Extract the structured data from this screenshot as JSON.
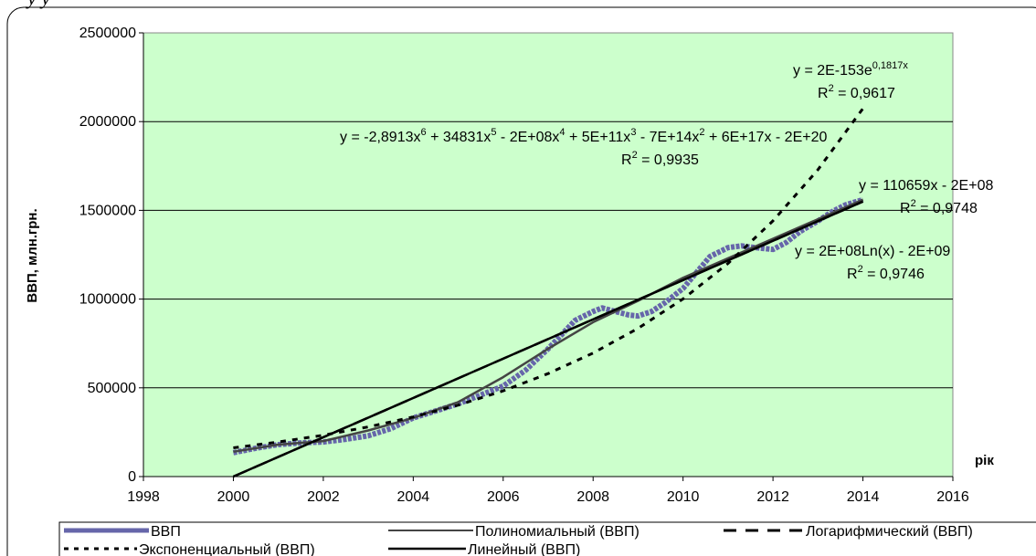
{
  "chart_data": {
    "type": "line",
    "title": "",
    "xlabel": "рік",
    "ylabel": "ВВП, млн.грн.",
    "xlim": [
      1998,
      2016
    ],
    "ylim": [
      0,
      2500000
    ],
    "x_ticks": [
      "1998",
      "2000",
      "2002",
      "2004",
      "2006",
      "2008",
      "2010",
      "2012",
      "2014",
      "2016"
    ],
    "y_ticks": [
      "0",
      "500000",
      "1000000",
      "1500000",
      "2000000",
      "2500000"
    ],
    "grid": "horizontal",
    "colors": {
      "plot_bg": "#ccffcc",
      "actual": "#6666aa",
      "poly": "#444444",
      "trend": "#000000"
    },
    "series": [
      {
        "name": "ВВП",
        "style": "thick-blue",
        "x": [
          2000,
          2000.5,
          2001,
          2001.5,
          2002,
          2002.5,
          2003,
          2003.5,
          2004,
          2004.5,
          2005,
          2005.5,
          2006,
          2006.5,
          2007,
          2007.3,
          2007.6,
          2008,
          2008.2,
          2008.5,
          2008.8,
          2009,
          2009.3,
          2009.6,
          2010,
          2010.3,
          2010.6,
          2011,
          2011.3,
          2011.6,
          2012,
          2012.3,
          2012.6,
          2013,
          2013.3,
          2013.6,
          2014
        ],
        "values": [
          135000,
          160000,
          180000,
          190000,
          195000,
          210000,
          230000,
          270000,
          330000,
          370000,
          410000,
          460000,
          510000,
          600000,
          720000,
          800000,
          880000,
          930000,
          950000,
          930000,
          910000,
          905000,
          930000,
          980000,
          1060000,
          1150000,
          1240000,
          1290000,
          1300000,
          1290000,
          1280000,
          1320000,
          1380000,
          1440000,
          1490000,
          1530000,
          1560000
        ]
      },
      {
        "name": "Полиномиальный (ВВП)",
        "style": "solid-dark",
        "x": [
          2000,
          2001,
          2002,
          2003,
          2004,
          2005,
          2006,
          2007,
          2008,
          2009,
          2010,
          2011,
          2012,
          2013,
          2014
        ],
        "values": [
          140000,
          180000,
          200000,
          260000,
          330000,
          420000,
          560000,
          720000,
          870000,
          990000,
          1120000,
          1230000,
          1340000,
          1450000,
          1560000
        ]
      },
      {
        "name": "Логарифмический (ВВП)",
        "style": "long-dash",
        "x": [
          2000,
          2014
        ],
        "values": [
          0,
          1550000
        ]
      },
      {
        "name": "Экспоненциальный (ВВП)",
        "style": "short-dash",
        "x": [
          2000,
          2001,
          2002,
          2003,
          2004,
          2005,
          2006,
          2007,
          2008,
          2009,
          2010,
          2011,
          2012,
          2013,
          2014
        ],
        "values": [
          162000,
          195000,
          233000,
          280000,
          336000,
          403000,
          483000,
          580000,
          696000,
          835000,
          1001000,
          1201000,
          1441000,
          1729000,
          2074000
        ]
      },
      {
        "name": "Линейный (ВВП)",
        "style": "solid-black",
        "x": [
          2000,
          2014
        ],
        "values": [
          0,
          1550000
        ]
      }
    ],
    "annotations": [
      {
        "line1": "y = 2E-153e",
        "sup1": "0,1817x",
        "r2": "R",
        "r2sup": "2",
        "r2val": " = 0,9617"
      },
      {
        "line1": "y = -2,8913x",
        "poly": [
          "6",
          " + 34831x",
          "5",
          " - 2E+08x",
          "4",
          " + 5E+11x",
          "3",
          " - 7E+14x",
          "2",
          " + 6E+17x - 2E+20"
        ],
        "r2": "R",
        "r2sup": "2",
        "r2val": " = 0,9935"
      },
      {
        "line1": "y = 110659x - 2E+08",
        "r2": "R",
        "r2sup": "2",
        "r2val": " = 0,9748"
      },
      {
        "line1": "y = 2E+08Ln(x) - 2E+09",
        "r2": "R",
        "r2sup": "2",
        "r2val": " = 0,9746"
      }
    ],
    "legend_position": "bottom"
  },
  "header_partial": "y     y"
}
